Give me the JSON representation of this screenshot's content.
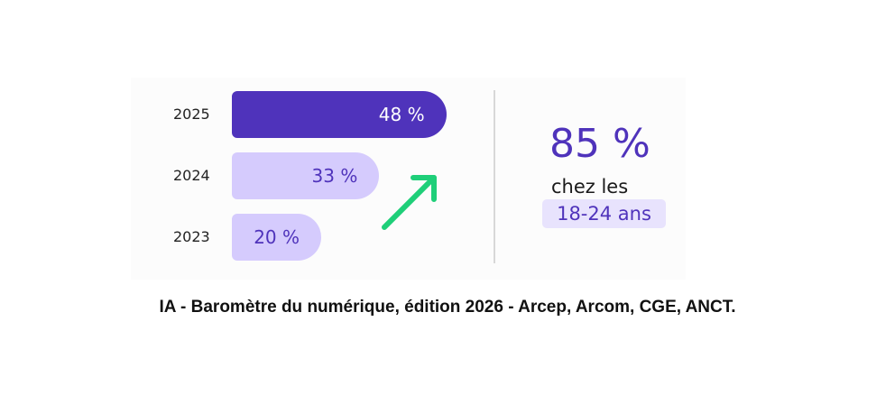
{
  "chart_data": {
    "type": "bar",
    "orientation": "horizontal",
    "categories": [
      "2025",
      "2024",
      "2023"
    ],
    "values": [
      48,
      33,
      20
    ],
    "data_labels": [
      "48 %",
      "33 %",
      "20 %"
    ],
    "colors": {
      "highlight": "#4f33bb",
      "other": "#d5cbfd",
      "label_on_highlight": "#ffffff",
      "label_on_other": "#4f33bb",
      "trend_arrow": "#1fcf79"
    },
    "trend": "up"
  },
  "callout": {
    "value": "85 %",
    "text": "chez les",
    "group": "18-24 ans"
  },
  "caption": "IA - Baromètre du numérique, édition 2026 - Arcep, Arcom, CGE, ANCT."
}
